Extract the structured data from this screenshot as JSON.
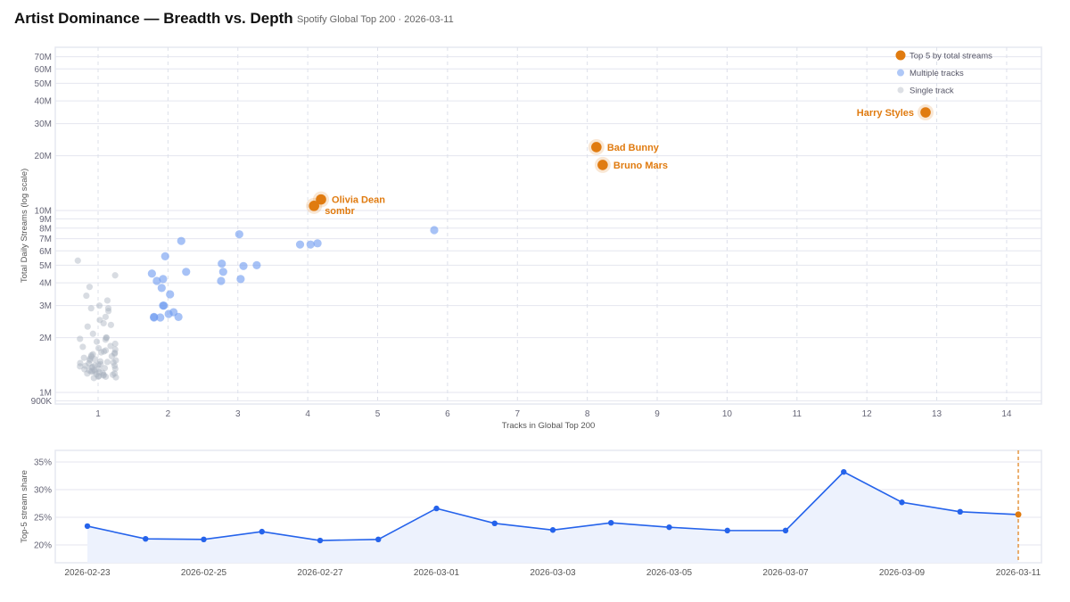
{
  "title": "Artist Dominance — Breadth vs. Depth",
  "subtitle": "Spotify Global Top 200 · 2026-03-11",
  "chart_data": [
    {
      "type": "scatter",
      "xlabel": "Tracks in Global Top 200",
      "ylabel": "Total Daily Streams (log scale)",
      "yscale": "log",
      "xlim": [
        0.3,
        14.5
      ],
      "ylim": [
        850000,
        80000000
      ],
      "xticks": [
        1,
        2,
        3,
        4,
        5,
        6,
        7,
        8,
        9,
        10,
        11,
        12,
        13,
        14
      ],
      "yticks": [
        {
          "value": 900000,
          "label": "900K"
        },
        {
          "value": 1000000,
          "label": "1M"
        },
        {
          "value": 2000000,
          "label": "2M"
        },
        {
          "value": 3000000,
          "label": "3M"
        },
        {
          "value": 4000000,
          "label": "4M"
        },
        {
          "value": 5000000,
          "label": "5M"
        },
        {
          "value": 6000000,
          "label": "6M"
        },
        {
          "value": 7000000,
          "label": "7M"
        },
        {
          "value": 8000000,
          "label": "8M"
        },
        {
          "value": 9000000,
          "label": "9M"
        },
        {
          "value": 10000000,
          "label": "10M"
        },
        {
          "value": 20000000,
          "label": "20M"
        },
        {
          "value": 30000000,
          "label": "30M"
        },
        {
          "value": 40000000,
          "label": "40M"
        },
        {
          "value": 50000000,
          "label": "50M"
        },
        {
          "value": 60000000,
          "label": "60M"
        },
        {
          "value": 70000000,
          "label": "70M"
        }
      ],
      "grid": true,
      "legend_position": "top-right",
      "colors": {
        "top5": "#e07b10",
        "multiple": "#6d9af0",
        "single": "#a9b1bf"
      },
      "legend": [
        "Top 5 by total streams",
        "Multiple tracks",
        "Single track"
      ],
      "top5": [
        {
          "artist": "Harry Styles",
          "tracks": 13,
          "streams": 34600000
        },
        {
          "artist": "Bad Bunny",
          "tracks": 8,
          "streams": 22300000
        },
        {
          "artist": "Bruno Mars",
          "tracks": 8,
          "streams": 17800000
        },
        {
          "artist": "Olivia Dean",
          "tracks": 4,
          "streams": 11500000
        },
        {
          "artist": "sombr",
          "tracks": 4,
          "streams": 10600000
        }
      ],
      "multiple": [
        {
          "tracks": 2,
          "streams": 6800000
        },
        {
          "tracks": 3,
          "streams": 7400000
        },
        {
          "tracks": 6,
          "streams": 7800000
        },
        {
          "tracks": 4,
          "streams": 6500000
        },
        {
          "tracks": 4,
          "streams": 6500000
        },
        {
          "tracks": 4,
          "streams": 6600000
        },
        {
          "tracks": 2,
          "streams": 5600000
        },
        {
          "tracks": 2,
          "streams": 4500000
        },
        {
          "tracks": 2,
          "streams": 4600000
        },
        {
          "tracks": 3,
          "streams": 5100000
        },
        {
          "tracks": 3,
          "streams": 4950000
        },
        {
          "tracks": 3,
          "streams": 5000000
        },
        {
          "tracks": 3,
          "streams": 4600000
        },
        {
          "tracks": 2,
          "streams": 4100000
        },
        {
          "tracks": 2,
          "streams": 4200000
        },
        {
          "tracks": 3,
          "streams": 4100000
        },
        {
          "tracks": 3,
          "streams": 4200000
        },
        {
          "tracks": 2,
          "streams": 3750000
        },
        {
          "tracks": 2,
          "streams": 3460000
        },
        {
          "tracks": 2,
          "streams": 3000000
        },
        {
          "tracks": 2,
          "streams": 3000000
        },
        {
          "tracks": 2,
          "streams": 2700000
        },
        {
          "tracks": 2,
          "streams": 2760000
        },
        {
          "tracks": 2,
          "streams": 2580000
        },
        {
          "tracks": 2,
          "streams": 2600000
        },
        {
          "tracks": 2,
          "streams": 2580000
        },
        {
          "tracks": 2,
          "streams": 2600000
        }
      ],
      "single": [
        5300000,
        4400000,
        3800000,
        3400000,
        3200000,
        3000000,
        2900000,
        2900000,
        2800000,
        2500000,
        2600000,
        2400000,
        2350000,
        2300000,
        2100000,
        2000000,
        2000000,
        1970000,
        1950000,
        1900000,
        1850000,
        1800000,
        1780000,
        1750000,
        1720000,
        1700000,
        1680000,
        1660000,
        1650000,
        1630000,
        1620000,
        1600000,
        1580000,
        1570000,
        1550000,
        1530000,
        1520000,
        1500000,
        1500000,
        1480000,
        1470000,
        1460000,
        1450000,
        1440000,
        1430000,
        1420000,
        1410000,
        1400000,
        1400000,
        1390000,
        1380000,
        1370000,
        1360000,
        1350000,
        1350000,
        1340000,
        1330000,
        1320000,
        1310000,
        1300000,
        1300000,
        1290000,
        1280000,
        1270000,
        1270000,
        1260000,
        1250000,
        1250000,
        1240000,
        1230000,
        1220000,
        1220000,
        1210000,
        1200000
      ]
    },
    {
      "type": "area",
      "xlabel": "",
      "ylabel": "Top-5 stream share",
      "ylim": [
        17,
        37
      ],
      "yticks": [
        {
          "value": 20,
          "label": "20%"
        },
        {
          "value": 25,
          "label": "25%"
        },
        {
          "value": 30,
          "label": "30%"
        },
        {
          "value": 35,
          "label": "35%"
        }
      ],
      "xtick_labels": [
        "2026-02-23",
        "2026-02-25",
        "2026-02-27",
        "2026-03-01",
        "2026-03-03",
        "2026-03-05",
        "2026-03-07",
        "2026-03-09",
        "2026-03-11"
      ],
      "grid": true,
      "colors": {
        "line": "#2563eb",
        "fill": "#edf2fd",
        "highlight": "#e07b10"
      },
      "highlight_date": "2026-03-11",
      "x": [
        "2026-02-23",
        "2026-02-24",
        "2026-02-25",
        "2026-02-26",
        "2026-02-27",
        "2026-02-28",
        "2026-03-01",
        "2026-03-02",
        "2026-03-03",
        "2026-03-04",
        "2026-03-05",
        "2026-03-06",
        "2026-03-07",
        "2026-03-08",
        "2026-03-09",
        "2026-03-10",
        "2026-03-11"
      ],
      "values": [
        23.4,
        21.1,
        21.0,
        22.4,
        20.8,
        21.0,
        26.6,
        23.9,
        22.7,
        24.0,
        23.2,
        22.6,
        22.6,
        33.2,
        27.7,
        26.0,
        25.5
      ]
    }
  ]
}
